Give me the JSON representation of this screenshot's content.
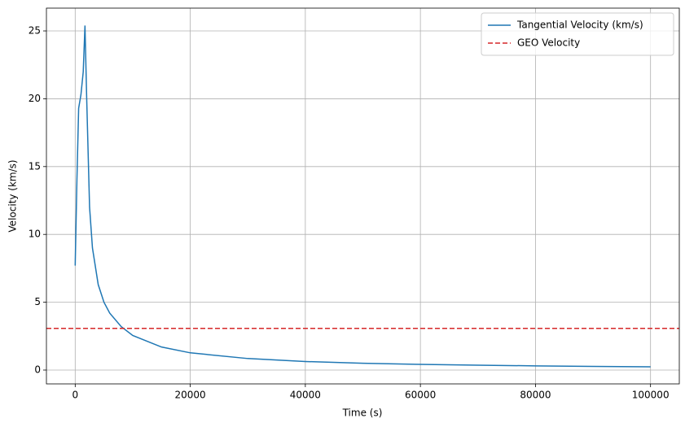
{
  "chart_data": {
    "type": "line",
    "xlabel": "Time (s)",
    "ylabel": "Velocity (km/s)",
    "x": [
      0,
      300,
      600,
      1000,
      1400,
      1700,
      2000,
      2500,
      3000,
      4000,
      5000,
      6000,
      8000,
      10000,
      15000,
      20000,
      30000,
      40000,
      50000,
      60000,
      70000,
      80000,
      90000,
      100000
    ],
    "series": [
      {
        "name": "Tangential Velocity (km/s)",
        "color": "#1f77b4",
        "values": [
          7.7,
          14,
          19.3,
          20.3,
          22,
          25.4,
          20,
          12,
          9,
          6.3,
          5,
          4.2,
          3.2,
          2.55,
          1.7,
          1.27,
          0.85,
          0.63,
          0.5,
          0.42,
          0.36,
          0.31,
          0.27,
          0.24
        ]
      }
    ],
    "hlines": [
      {
        "name": "GEO Velocity",
        "color": "#d62728",
        "y": 3.07,
        "dashed": true
      }
    ],
    "xlim": [
      -5000,
      105000
    ],
    "ylim": [
      -1.02,
      26.68
    ],
    "xticks": [
      0,
      20000,
      40000,
      60000,
      80000,
      100000
    ],
    "yticks": [
      0,
      5,
      10,
      15,
      20,
      25
    ],
    "grid": true,
    "legend": "upper right"
  }
}
